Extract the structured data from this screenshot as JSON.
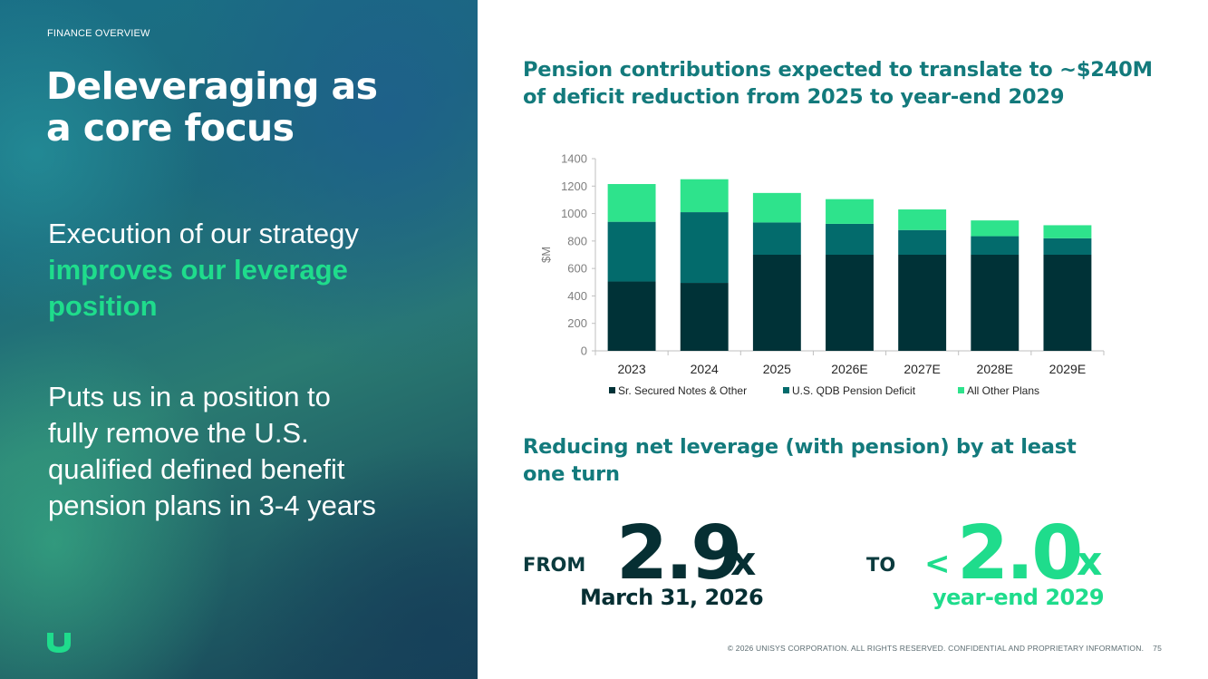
{
  "left": {
    "eyebrow": "FINANCE OVERVIEW",
    "title_line1": "Deleveraging as",
    "title_line2": "a core focus",
    "point1_plain": "Execution of our strategy",
    "point1_highlight_line1": "improves our leverage",
    "point1_highlight_line2": "position",
    "point2_line1": "Puts us in a position to",
    "point2_line2": "fully remove the U.S.",
    "point2_line3": "qualified defined benefit",
    "point2_line4": "pension plans in 3-4 years",
    "logo_icon": "unisys-u-logo-icon"
  },
  "right": {
    "heading1_line1": "Pension contributions expected to translate to ~$240M",
    "heading1_line2": "of deficit reduction from 2025 to year-end 2029",
    "heading2_line1": "Reducing net leverage (with pension) by at least",
    "heading2_line2": "one turn",
    "from_label": "FROM",
    "from_value": "2.9",
    "from_suffix": "x",
    "from_date": "March 31, 2026",
    "to_label": "TO",
    "to_prefix": "<",
    "to_value": "2.0",
    "to_suffix": "x",
    "to_date": "year-end 2029"
  },
  "footer": {
    "copyright": "© 2026 UNISYS CORPORATION. ALL RIGHTS RESERVED. CONFIDENTIAL AND PROPRIETARY INFORMATION.",
    "page_number": "75"
  },
  "colors": {
    "accent_green": "#1fdc8c",
    "heading_teal": "#137a7c",
    "series_dark": "#003237",
    "series_teal": "#036b6c",
    "series_green": "#2ee38c"
  },
  "chart_data": {
    "type": "bar",
    "stacked": true,
    "categories": [
      "2023",
      "2024",
      "2025",
      "2026E",
      "2027E",
      "2028E",
      "2029E"
    ],
    "series": [
      {
        "name": "Sr. Secured Notes & Other",
        "color": "#003237",
        "values": [
          505,
          495,
          700,
          700,
          700,
          700,
          700
        ]
      },
      {
        "name": "U.S. QDB Pension Deficit",
        "color": "#036b6c",
        "values": [
          435,
          515,
          235,
          225,
          180,
          135,
          120
        ]
      },
      {
        "name": "All Other Plans",
        "color": "#2ee38c",
        "values": [
          275,
          240,
          215,
          180,
          150,
          115,
          95
        ]
      }
    ],
    "ylabel": "$M",
    "ylim": [
      0,
      1400
    ],
    "yticks": [
      0,
      200,
      400,
      600,
      800,
      1000,
      1200,
      1400
    ],
    "grid": false,
    "legend_position": "bottom"
  }
}
